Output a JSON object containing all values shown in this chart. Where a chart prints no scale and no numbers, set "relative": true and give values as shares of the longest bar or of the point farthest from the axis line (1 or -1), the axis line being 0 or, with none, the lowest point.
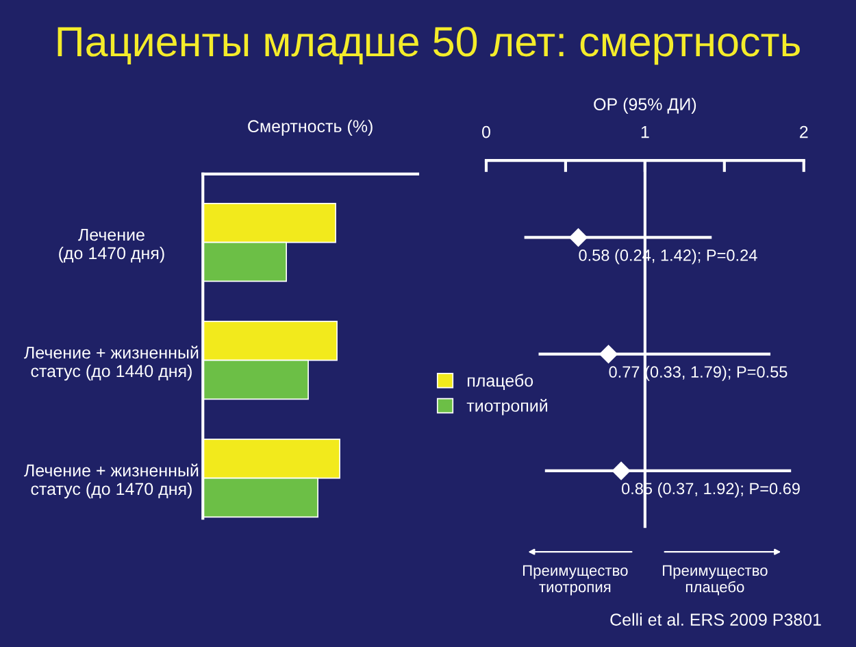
{
  "chart_data": [
    {
      "type": "bar",
      "orientation": "horizontal",
      "relative": true,
      "title": "Пациенты младше 50 лет: смертность",
      "xlabel": "Смертность (%)",
      "categories": [
        "Лечение\n(до 1470 дня)",
        "Лечение + жизненный\nстатус (до 1440 дня)",
        "Лечение + жизненный\nстатус (до 1470 дня)"
      ],
      "series": [
        {
          "name": "плацебо",
          "color": "#f2ea1c",
          "values": [
            0.97,
            0.98,
            1.0
          ]
        },
        {
          "name": "тиотропий",
          "color": "#6cbf46",
          "values": [
            0.61,
            0.77,
            0.84
          ]
        }
      ],
      "legend": "right",
      "grid": false,
      "tick_labels": "y"
    },
    {
      "type": "scatter",
      "orientation": "horizontal",
      "xlabel": "ОР (95% ДИ)",
      "values": [
        0.58,
        0.77,
        0.85
      ],
      "errors": [
        [
          0.24,
          1.42
        ],
        [
          0.33,
          1.79
        ],
        [
          0.37,
          1.92
        ]
      ],
      "value_labels": [
        "0.58 (0.24, 1.42); P=0.24",
        "0.77 (0.33, 1.79); P=0.55",
        "0.85 (0.37, 1.92); P=0.69"
      ],
      "color": "#ffffff",
      "marker": "diamond",
      "xlim": [
        0,
        2
      ],
      "xticks": [
        0,
        {
          "value": 0.5,
          "label": null
        },
        1,
        {
          "value": 1.5,
          "label": null
        },
        2
      ],
      "ref_lines": [
        {
          "axis": "x",
          "value": 1,
          "color": "#ffffff"
        }
      ],
      "annotations": [
        "Преимущество\nтиотропия",
        "Преимущество\nплацебо",
        "Celli et al. ERS 2009 P3801"
      ],
      "grid": false,
      "tick_labels": "x"
    }
  ]
}
